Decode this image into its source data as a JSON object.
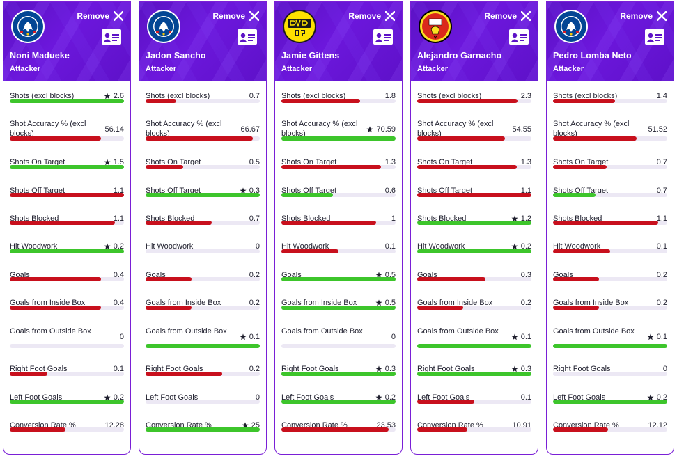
{
  "ui": {
    "remove_label": "Remove",
    "accent_color": "#6a16d8",
    "win_color": "#3dc52b",
    "lose_color": "#c8101d",
    "track_color": "#ece8f4"
  },
  "players": [
    {
      "name": "Noni Madueke",
      "role": "Attacker",
      "club_badge": "chelsea-badge",
      "stats": [
        {
          "label": "Shots (excl blocks)",
          "value": "2.6",
          "star": true,
          "bar": 1.0,
          "color": "win"
        },
        {
          "label": "Shot Accuracy % (excl blocks)",
          "value": "56.14",
          "star": false,
          "bar": 0.8,
          "color": "lose"
        },
        {
          "label": "Shots On Target",
          "value": "1.5",
          "star": true,
          "bar": 1.0,
          "color": "win"
        },
        {
          "label": "Shots Off Target",
          "value": "1.1",
          "star": false,
          "bar": 1.0,
          "color": "lose"
        },
        {
          "label": "Shots Blocked",
          "value": "1.1",
          "star": false,
          "bar": 0.92,
          "color": "lose"
        },
        {
          "label": "Hit Woodwork",
          "value": "0.2",
          "star": true,
          "bar": 1.0,
          "color": "win"
        },
        {
          "label": "Goals",
          "value": "0.4",
          "star": false,
          "bar": 0.8,
          "color": "lose"
        },
        {
          "label": "Goals from Inside Box",
          "value": "0.4",
          "star": false,
          "bar": 0.8,
          "color": "lose"
        },
        {
          "label": "Goals from Outside Box",
          "value": "0",
          "star": false,
          "bar": 0,
          "color": "lose"
        },
        {
          "label": "Right Foot Goals",
          "value": "0.1",
          "star": false,
          "bar": 0.33,
          "color": "lose"
        },
        {
          "label": "Left Foot Goals",
          "value": "0.2",
          "star": true,
          "bar": 1.0,
          "color": "win"
        },
        {
          "label": "Conversion Rate %",
          "value": "12.28",
          "star": false,
          "bar": 0.49,
          "color": "lose"
        }
      ]
    },
    {
      "name": "Jadon Sancho",
      "role": "Attacker",
      "club_badge": "chelsea-badge",
      "stats": [
        {
          "label": "Shots (excl blocks)",
          "value": "0.7",
          "star": false,
          "bar": 0.27,
          "color": "lose"
        },
        {
          "label": "Shot Accuracy % (excl blocks)",
          "value": "66.67",
          "star": false,
          "bar": 0.94,
          "color": "lose"
        },
        {
          "label": "Shots On Target",
          "value": "0.5",
          "star": false,
          "bar": 0.33,
          "color": "lose"
        },
        {
          "label": "Shots Off Target",
          "value": "0.3",
          "star": true,
          "bar": 1.0,
          "color": "win"
        },
        {
          "label": "Shots Blocked",
          "value": "0.7",
          "star": false,
          "bar": 0.58,
          "color": "lose"
        },
        {
          "label": "Hit Woodwork",
          "value": "0",
          "star": false,
          "bar": 0,
          "color": "lose"
        },
        {
          "label": "Goals",
          "value": "0.2",
          "star": false,
          "bar": 0.4,
          "color": "lose"
        },
        {
          "label": "Goals from Inside Box",
          "value": "0.2",
          "star": false,
          "bar": 0.4,
          "color": "lose"
        },
        {
          "label": "Goals from Outside Box",
          "value": "0.1",
          "star": true,
          "bar": 1.0,
          "color": "win"
        },
        {
          "label": "Right Foot Goals",
          "value": "0.2",
          "star": false,
          "bar": 0.67,
          "color": "lose"
        },
        {
          "label": "Left Foot Goals",
          "value": "0",
          "star": false,
          "bar": 0,
          "color": "lose"
        },
        {
          "label": "Conversion Rate %",
          "value": "25",
          "star": true,
          "bar": 1.0,
          "color": "win"
        }
      ]
    },
    {
      "name": "Jamie Gittens",
      "role": "Attacker",
      "club_badge": "bvb-badge",
      "stats": [
        {
          "label": "Shots (excl blocks)",
          "value": "1.8",
          "star": false,
          "bar": 0.69,
          "color": "lose"
        },
        {
          "label": "Shot Accuracy % (excl blocks)",
          "value": "70.59",
          "star": true,
          "bar": 1.0,
          "color": "win"
        },
        {
          "label": "Shots On Target",
          "value": "1.3",
          "star": false,
          "bar": 0.87,
          "color": "lose"
        },
        {
          "label": "Shots Off Target",
          "value": "0.6",
          "star": false,
          "bar": 0.45,
          "color": "win"
        },
        {
          "label": "Shots Blocked",
          "value": "1",
          "star": false,
          "bar": 0.83,
          "color": "lose"
        },
        {
          "label": "Hit Woodwork",
          "value": "0.1",
          "star": false,
          "bar": 0.5,
          "color": "lose"
        },
        {
          "label": "Goals",
          "value": "0.5",
          "star": true,
          "bar": 1.0,
          "color": "win"
        },
        {
          "label": "Goals from Inside Box",
          "value": "0.5",
          "star": true,
          "bar": 1.0,
          "color": "win"
        },
        {
          "label": "Goals from Outside Box",
          "value": "0",
          "star": false,
          "bar": 0,
          "color": "lose"
        },
        {
          "label": "Right Foot Goals",
          "value": "0.3",
          "star": true,
          "bar": 1.0,
          "color": "win"
        },
        {
          "label": "Left Foot Goals",
          "value": "0.2",
          "star": true,
          "bar": 1.0,
          "color": "win"
        },
        {
          "label": "Conversion Rate %",
          "value": "23.53",
          "star": false,
          "bar": 0.94,
          "color": "lose"
        }
      ]
    },
    {
      "name": "Alejandro Garnacho",
      "role": "Attacker",
      "club_badge": "man-utd-badge",
      "stats": [
        {
          "label": "Shots (excl blocks)",
          "value": "2.3",
          "star": false,
          "bar": 0.88,
          "color": "lose"
        },
        {
          "label": "Shot Accuracy % (excl blocks)",
          "value": "54.55",
          "star": false,
          "bar": 0.77,
          "color": "lose"
        },
        {
          "label": "Shots On Target",
          "value": "1.3",
          "star": false,
          "bar": 0.87,
          "color": "lose"
        },
        {
          "label": "Shots Off Target",
          "value": "1.1",
          "star": false,
          "bar": 1.0,
          "color": "lose"
        },
        {
          "label": "Shots Blocked",
          "value": "1.2",
          "star": true,
          "bar": 1.0,
          "color": "win"
        },
        {
          "label": "Hit Woodwork",
          "value": "0.2",
          "star": true,
          "bar": 1.0,
          "color": "win"
        },
        {
          "label": "Goals",
          "value": "0.3",
          "star": false,
          "bar": 0.6,
          "color": "lose"
        },
        {
          "label": "Goals from Inside Box",
          "value": "0.2",
          "star": false,
          "bar": 0.4,
          "color": "lose"
        },
        {
          "label": "Goals from Outside Box",
          "value": "0.1",
          "star": true,
          "bar": 1.0,
          "color": "win"
        },
        {
          "label": "Right Foot Goals",
          "value": "0.3",
          "star": true,
          "bar": 1.0,
          "color": "win"
        },
        {
          "label": "Left Foot Goals",
          "value": "0.1",
          "star": false,
          "bar": 0.5,
          "color": "lose"
        },
        {
          "label": "Conversion Rate %",
          "value": "10.91",
          "star": false,
          "bar": 0.44,
          "color": "lose"
        }
      ]
    },
    {
      "name": "Pedro Lomba Neto",
      "role": "Attacker",
      "club_badge": "chelsea-badge",
      "stats": [
        {
          "label": "Shots (excl blocks)",
          "value": "1.4",
          "star": false,
          "bar": 0.54,
          "color": "lose"
        },
        {
          "label": "Shot Accuracy % (excl blocks)",
          "value": "51.52",
          "star": false,
          "bar": 0.73,
          "color": "lose"
        },
        {
          "label": "Shots On Target",
          "value": "0.7",
          "star": false,
          "bar": 0.47,
          "color": "lose"
        },
        {
          "label": "Shots Off Target",
          "value": "0.7",
          "star": false,
          "bar": 0.37,
          "color": "win"
        },
        {
          "label": "Shots Blocked",
          "value": "1.1",
          "star": false,
          "bar": 0.92,
          "color": "lose"
        },
        {
          "label": "Hit Woodwork",
          "value": "0.1",
          "star": false,
          "bar": 0.5,
          "color": "lose"
        },
        {
          "label": "Goals",
          "value": "0.2",
          "star": false,
          "bar": 0.4,
          "color": "lose"
        },
        {
          "label": "Goals from Inside Box",
          "value": "0.2",
          "star": false,
          "bar": 0.4,
          "color": "lose"
        },
        {
          "label": "Goals from Outside Box",
          "value": "0.1",
          "star": true,
          "bar": 1.0,
          "color": "win"
        },
        {
          "label": "Right Foot Goals",
          "value": "0",
          "star": false,
          "bar": 0,
          "color": "lose"
        },
        {
          "label": "Left Foot Goals",
          "value": "0.2",
          "star": true,
          "bar": 1.0,
          "color": "win"
        },
        {
          "label": "Conversion Rate %",
          "value": "12.12",
          "star": false,
          "bar": 0.48,
          "color": "lose"
        }
      ]
    }
  ]
}
